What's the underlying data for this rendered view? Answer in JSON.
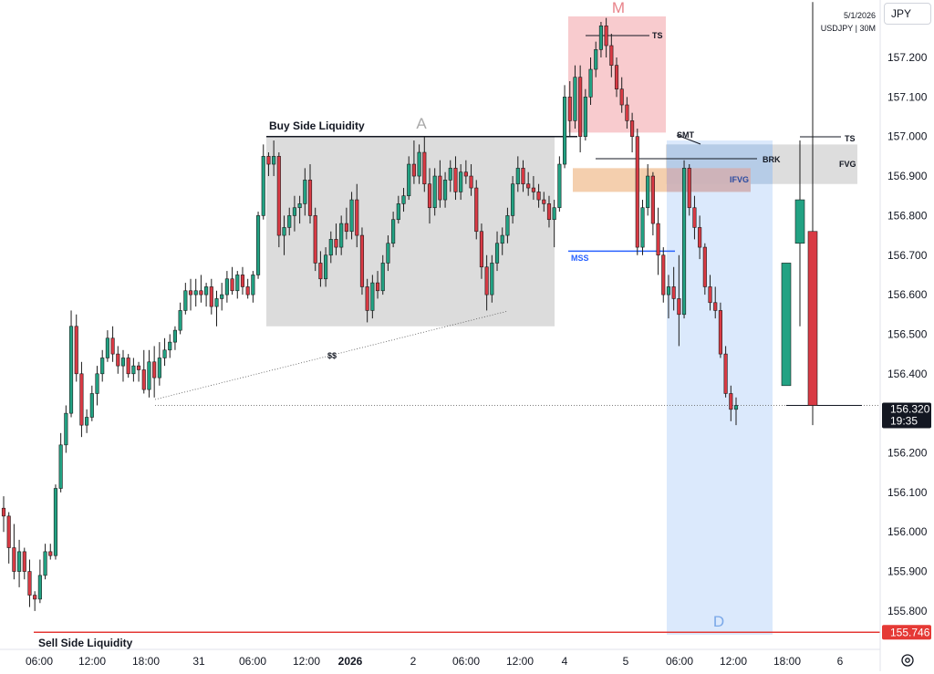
{
  "header": {
    "symbol_button": "JPY",
    "date": "5/1/2026",
    "instrument": "USDJPY | 30M"
  },
  "colors": {
    "bull": "#22a283",
    "bear": "#d93a44",
    "supply_zone": "#f7c2c6",
    "demand_zone": "#cfe1fb",
    "fvg_zone": "#d9d9d9",
    "ifvg_orange": "#f2c7a0",
    "ifvg_blue": "#b9d2f4",
    "mss_line": "#2962ff",
    "sell_side_line": "#e53935"
  },
  "annotations": {
    "buy_side_liquidity": "Buy Side Liquidity",
    "sell_side_liquidity": "Sell Side Liquidity",
    "label_a": "A",
    "label_m": "M",
    "label_d": "D",
    "ts_top": "TS",
    "ts_right": "TS",
    "smt": "SMT",
    "brk": "BRK",
    "fvg": "FVG",
    "ifvg": "IFVG",
    "mss": "MSS",
    "ss": "$$"
  },
  "price_axis": {
    "ticks": [
      "157.200",
      "157.100",
      "157.000",
      "156.900",
      "156.800",
      "156.700",
      "156.600",
      "156.500",
      "156.400",
      "156.200",
      "156.100",
      "156.000",
      "155.900",
      "155.800"
    ],
    "current_price": "156.320",
    "countdown": "19:35",
    "sell_side_price": "155.746"
  },
  "time_axis": {
    "labels": [
      "06:00",
      "12:00",
      "18:00",
      "31",
      "06:00",
      "12:00",
      "2026",
      "2",
      "06:00",
      "12:00",
      "4",
      "5",
      "06:00",
      "12:00",
      "18:00",
      "6"
    ]
  },
  "chart_data": {
    "type": "candlestick",
    "symbol": "USDJPY",
    "timeframe": "30M",
    "ylim": [
      155.72,
      157.3
    ],
    "y_ticks": [
      157.2,
      157.1,
      157.0,
      156.9,
      156.8,
      156.7,
      156.6,
      156.5,
      156.4,
      156.2,
      156.1,
      156.0,
      155.9,
      155.8
    ],
    "last_price": 156.32,
    "buy_side_liquidity": 157.0,
    "sell_side_liquidity": 155.746,
    "mss_level": 156.71,
    "zones": {
      "A": [
        156.52,
        157.0
      ],
      "M": [
        157.01,
        157.3
      ],
      "D": [
        155.74,
        156.99
      ],
      "FVG": [
        156.88,
        156.98
      ],
      "IFVG": [
        156.86,
        156.92
      ]
    },
    "candles": [
      [
        156.06,
        156.09,
        156.0,
        156.04
      ],
      [
        156.04,
        156.05,
        155.92,
        155.96
      ],
      [
        155.96,
        156.02,
        155.88,
        155.9
      ],
      [
        155.9,
        155.98,
        155.86,
        155.95
      ],
      [
        155.95,
        155.96,
        155.88,
        155.9
      ],
      [
        155.9,
        155.93,
        155.81,
        155.84
      ],
      [
        155.84,
        155.85,
        155.8,
        155.83
      ],
      [
        155.83,
        155.93,
        155.82,
        155.89
      ],
      [
        155.89,
        155.97,
        155.88,
        155.95
      ],
      [
        155.95,
        155.97,
        155.93,
        155.94
      ],
      [
        155.94,
        156.12,
        155.93,
        156.11
      ],
      [
        156.11,
        156.25,
        156.1,
        156.22
      ],
      [
        156.22,
        156.32,
        156.2,
        156.3
      ],
      [
        156.3,
        156.56,
        156.29,
        156.52
      ],
      [
        156.52,
        156.55,
        156.38,
        156.4
      ],
      [
        156.4,
        156.43,
        156.24,
        156.27
      ],
      [
        156.27,
        156.31,
        156.25,
        156.29
      ],
      [
        156.29,
        156.37,
        156.28,
        156.35
      ],
      [
        156.35,
        156.42,
        156.32,
        156.4
      ],
      [
        156.4,
        156.46,
        156.38,
        156.44
      ],
      [
        156.44,
        156.51,
        156.43,
        156.49
      ],
      [
        156.49,
        156.52,
        156.43,
        156.45
      ],
      [
        156.45,
        156.47,
        156.4,
        156.42
      ],
      [
        156.42,
        156.46,
        156.38,
        156.44
      ],
      [
        156.44,
        156.45,
        156.39,
        156.4
      ],
      [
        156.4,
        156.44,
        156.38,
        156.42
      ],
      [
        156.42,
        156.43,
        156.38,
        156.41
      ],
      [
        156.41,
        156.46,
        156.35,
        156.36
      ],
      [
        156.36,
        156.46,
        156.34,
        156.43
      ],
      [
        156.43,
        156.47,
        156.34,
        156.39
      ],
      [
        156.39,
        156.48,
        156.37,
        156.44
      ],
      [
        156.44,
        156.49,
        156.42,
        156.46
      ],
      [
        156.46,
        156.5,
        156.44,
        156.48
      ],
      [
        156.48,
        156.52,
        156.46,
        156.51
      ],
      [
        156.51,
        156.58,
        156.5,
        156.56
      ],
      [
        156.56,
        156.63,
        156.55,
        156.61
      ],
      [
        156.61,
        156.64,
        156.56,
        156.6
      ],
      [
        156.6,
        156.64,
        156.57,
        156.61
      ],
      [
        156.61,
        156.65,
        156.58,
        156.6
      ],
      [
        156.6,
        156.63,
        156.57,
        156.62
      ],
      [
        156.62,
        156.64,
        156.55,
        156.57
      ],
      [
        156.57,
        156.61,
        156.52,
        156.59
      ],
      [
        156.59,
        156.63,
        156.56,
        156.6
      ],
      [
        156.6,
        156.66,
        156.58,
        156.64
      ],
      [
        156.64,
        156.67,
        156.6,
        156.61
      ],
      [
        156.61,
        156.66,
        156.59,
        156.65
      ],
      [
        156.65,
        156.67,
        156.6,
        156.62
      ],
      [
        156.62,
        156.64,
        156.59,
        156.6
      ],
      [
        156.6,
        156.66,
        156.58,
        156.65
      ],
      [
        156.65,
        156.81,
        156.64,
        156.8
      ],
      [
        156.8,
        156.98,
        156.79,
        156.95
      ],
      [
        156.95,
        156.96,
        156.9,
        156.93
      ],
      [
        156.93,
        156.99,
        156.9,
        156.95
      ],
      [
        156.95,
        156.96,
        156.72,
        156.75
      ],
      [
        156.75,
        156.8,
        156.7,
        156.77
      ],
      [
        156.77,
        156.82,
        156.75,
        156.8
      ],
      [
        156.8,
        156.85,
        156.76,
        156.82
      ],
      [
        156.82,
        156.85,
        156.78,
        156.83
      ],
      [
        156.83,
        156.92,
        156.8,
        156.89
      ],
      [
        156.89,
        156.93,
        156.78,
        156.8
      ],
      [
        156.8,
        156.82,
        156.66,
        156.68
      ],
      [
        156.68,
        156.71,
        156.62,
        156.64
      ],
      [
        156.64,
        156.72,
        156.62,
        156.7
      ],
      [
        156.7,
        156.76,
        156.68,
        156.74
      ],
      [
        156.74,
        156.78,
        156.7,
        156.72
      ],
      [
        156.72,
        156.8,
        156.7,
        156.78
      ],
      [
        156.78,
        156.82,
        156.74,
        156.76
      ],
      [
        156.76,
        156.86,
        156.74,
        156.84
      ],
      [
        156.84,
        156.88,
        156.72,
        156.75
      ],
      [
        156.75,
        156.77,
        156.6,
        156.62
      ],
      [
        156.62,
        156.64,
        156.53,
        156.56
      ],
      [
        156.56,
        156.65,
        156.54,
        156.63
      ],
      [
        156.63,
        156.66,
        156.59,
        156.61
      ],
      [
        156.61,
        156.7,
        156.6,
        156.68
      ],
      [
        156.68,
        156.75,
        156.66,
        156.73
      ],
      [
        156.73,
        156.81,
        156.72,
        156.79
      ],
      [
        156.79,
        156.85,
        156.78,
        156.83
      ],
      [
        156.83,
        156.87,
        156.81,
        156.85
      ],
      [
        156.85,
        156.95,
        156.84,
        156.93
      ],
      [
        156.93,
        156.99,
        156.88,
        156.9
      ],
      [
        156.9,
        156.98,
        156.88,
        156.96
      ],
      [
        156.96,
        157.0,
        156.86,
        156.88
      ],
      [
        156.88,
        156.92,
        156.78,
        156.82
      ],
      [
        156.82,
        156.92,
        156.8,
        156.9
      ],
      [
        156.9,
        156.94,
        156.82,
        156.84
      ],
      [
        156.84,
        156.91,
        156.82,
        156.89
      ],
      [
        156.89,
        156.94,
        156.86,
        156.92
      ],
      [
        156.92,
        156.95,
        156.84,
        156.86
      ],
      [
        156.86,
        156.93,
        156.84,
        156.91
      ],
      [
        156.91,
        156.94,
        156.88,
        156.9
      ],
      [
        156.9,
        156.93,
        156.85,
        156.87
      ],
      [
        156.87,
        156.89,
        156.74,
        156.76
      ],
      [
        156.76,
        156.78,
        156.64,
        156.67
      ],
      [
        156.67,
        156.7,
        156.56,
        156.6
      ],
      [
        156.6,
        156.7,
        156.58,
        156.68
      ],
      [
        156.68,
        156.76,
        156.66,
        156.73
      ],
      [
        156.73,
        156.77,
        156.7,
        156.75
      ],
      [
        156.75,
        156.82,
        156.73,
        156.8
      ],
      [
        156.8,
        156.9,
        156.78,
        156.88
      ],
      [
        156.88,
        156.95,
        156.86,
        156.92
      ],
      [
        156.92,
        156.94,
        156.86,
        156.88
      ],
      [
        156.88,
        156.91,
        156.85,
        156.87
      ],
      [
        156.87,
        156.9,
        156.84,
        156.86
      ],
      [
        156.86,
        156.88,
        156.82,
        156.84
      ],
      [
        156.84,
        156.86,
        156.81,
        156.83
      ],
      [
        156.83,
        156.85,
        156.77,
        156.79
      ],
      [
        156.79,
        156.84,
        156.72,
        156.82
      ],
      [
        156.82,
        156.95,
        156.81,
        156.93
      ],
      [
        156.93,
        157.13,
        156.92,
        157.1
      ],
      [
        157.1,
        157.14,
        157.0,
        157.04
      ],
      [
        157.04,
        157.18,
        157.02,
        157.15
      ],
      [
        157.15,
        157.18,
        156.96,
        157.0
      ],
      [
        157.0,
        157.12,
        156.99,
        157.1
      ],
      [
        157.1,
        157.2,
        157.08,
        157.17
      ],
      [
        157.17,
        157.24,
        157.15,
        157.22
      ],
      [
        157.22,
        157.29,
        157.2,
        157.28
      ],
      [
        157.28,
        157.3,
        157.2,
        157.23
      ],
      [
        157.23,
        157.26,
        157.15,
        157.18
      ],
      [
        157.18,
        157.2,
        157.1,
        157.12
      ],
      [
        157.12,
        157.15,
        157.06,
        157.08
      ],
      [
        157.08,
        157.1,
        157.02,
        157.04
      ],
      [
        157.04,
        157.06,
        156.96,
        157.0
      ],
      [
        157.0,
        157.02,
        156.7,
        156.72
      ],
      [
        156.72,
        156.84,
        156.7,
        156.82
      ],
      [
        156.82,
        156.93,
        156.8,
        156.9
      ],
      [
        156.9,
        156.91,
        156.75,
        156.78
      ],
      [
        156.78,
        156.82,
        156.65,
        156.7
      ],
      [
        156.7,
        156.72,
        156.58,
        156.6
      ],
      [
        156.6,
        156.65,
        156.54,
        156.62
      ],
      [
        156.62,
        156.67,
        156.56,
        156.59
      ],
      [
        156.59,
        156.7,
        156.47,
        156.55
      ],
      [
        156.55,
        156.94,
        156.54,
        156.92
      ],
      [
        156.92,
        156.93,
        156.8,
        156.82
      ],
      [
        156.82,
        156.85,
        156.74,
        156.77
      ],
      [
        156.77,
        156.8,
        156.69,
        156.72
      ],
      [
        156.72,
        156.73,
        156.6,
        156.62
      ],
      [
        156.62,
        156.65,
        156.56,
        156.58
      ],
      [
        156.58,
        156.62,
        156.54,
        156.56
      ],
      [
        156.56,
        156.58,
        156.44,
        156.45
      ],
      [
        156.45,
        156.47,
        156.34,
        156.35
      ],
      [
        156.35,
        156.37,
        156.28,
        156.31
      ],
      [
        156.31,
        156.34,
        156.27,
        156.32
      ]
    ],
    "projection_candles": [
      [
        156.37,
        156.68,
        156.37,
        156.68
      ],
      [
        156.73,
        156.99,
        156.52,
        156.84
      ],
      [
        156.76,
        157.34,
        156.27,
        156.32
      ]
    ]
  }
}
